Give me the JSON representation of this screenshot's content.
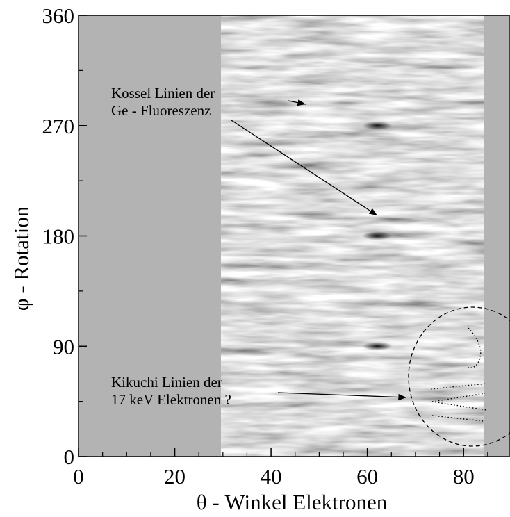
{
  "chart_data": {
    "type": "image",
    "xlabel": "θ - Winkel Elektronen",
    "ylabel": "φ - Rotation",
    "xlim": [
      0,
      89.5
    ],
    "ylim": [
      0,
      360
    ],
    "xticks": [
      0,
      20,
      40,
      60,
      80
    ],
    "yticks": [
      0,
      90,
      180,
      270,
      360
    ],
    "xminorticks": [
      5,
      10,
      15,
      25,
      30,
      35,
      45,
      50,
      55,
      65,
      70,
      75,
      85
    ],
    "yminorticks": [
      45,
      135,
      225,
      315
    ],
    "annotations": [
      {
        "lines": [
          "Kossel Linien der",
          "Ge - Fluoreszenz"
        ]
      },
      {
        "lines": [
          "Kikuchi Linien der",
          "17 keV Elektronen ?"
        ]
      }
    ]
  }
}
